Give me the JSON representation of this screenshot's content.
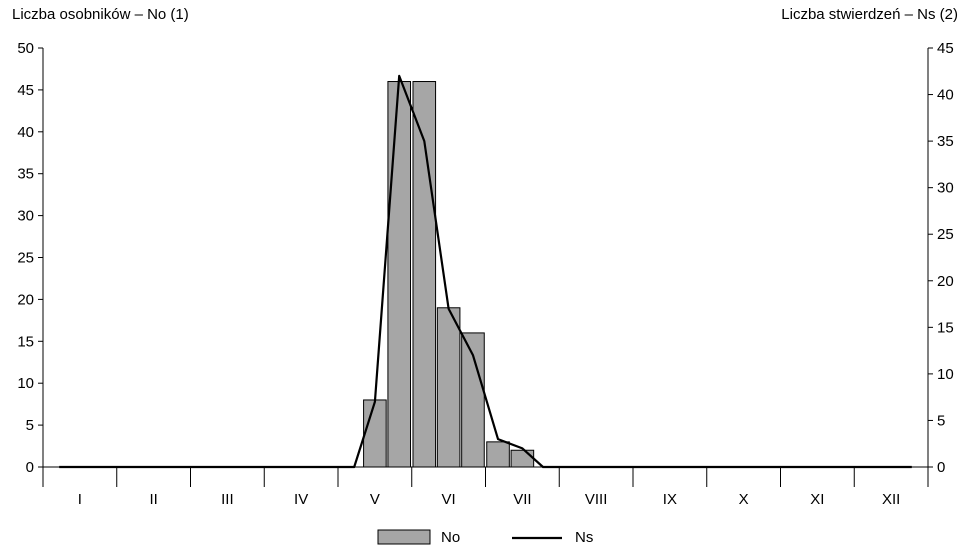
{
  "chart_data": {
    "type": "bar",
    "categories": [
      "I",
      "II",
      "III",
      "IV",
      "V",
      "VI",
      "VII",
      "VIII",
      "IX",
      "X",
      "XI",
      "XII"
    ],
    "ylabel_left": "Liczba osobników – No (1)",
    "ylabel_right": "Liczba stwierdzeń – Ns (2)",
    "ylim_left": [
      0,
      50
    ],
    "ylim_right": [
      0,
      45
    ],
    "yticks_left": [
      0,
      5,
      10,
      15,
      20,
      25,
      30,
      35,
      40,
      45,
      50
    ],
    "yticks_right": [
      0,
      5,
      10,
      15,
      20,
      25,
      30,
      35,
      40,
      45
    ],
    "grid": false,
    "legend_position": "bottom-center",
    "series": [
      {
        "name": "No",
        "kind": "bar",
        "axis": "left",
        "color": "#a6a6a6",
        "x": [
          4.5,
          4.83,
          5.17,
          5.5,
          5.83,
          6.17,
          6.5
        ],
        "values": [
          8,
          46,
          46,
          19,
          16,
          3,
          2
        ]
      },
      {
        "name": "Ns",
        "kind": "line",
        "axis": "right",
        "color": "#000000",
        "x": [
          0.22,
          4.22,
          4.5,
          4.83,
          5.17,
          5.5,
          5.83,
          6.17,
          6.5,
          6.78,
          11.78
        ],
        "values": [
          0,
          0,
          7,
          42,
          35,
          17,
          12,
          3,
          2,
          0,
          0
        ]
      }
    ]
  }
}
